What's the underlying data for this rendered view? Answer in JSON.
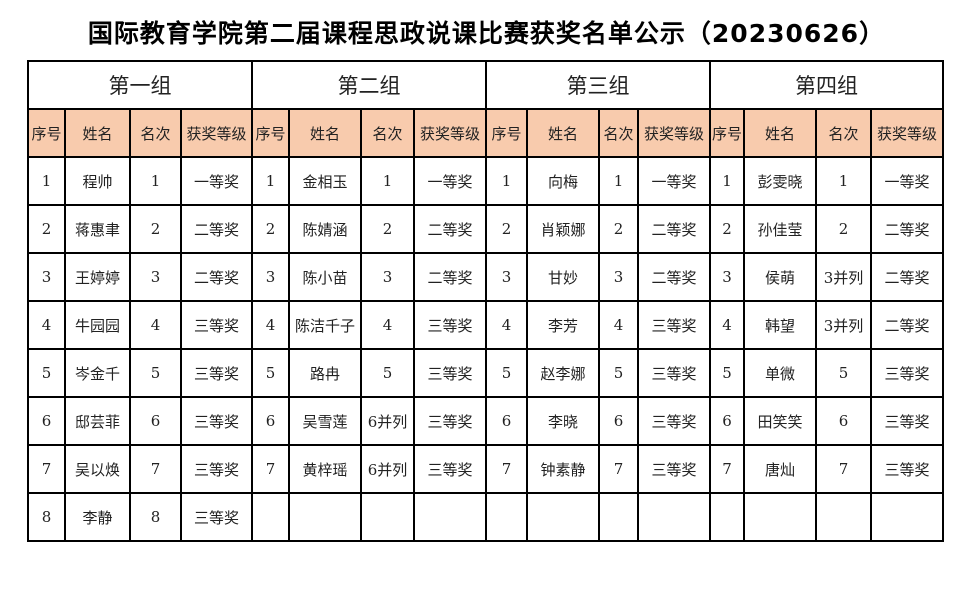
{
  "title": "国际教育学院第二届课程思政说课比赛获奖名单公示（20230626）",
  "header_fill": "#f8cbad",
  "columns": [
    "序号",
    "姓名",
    "名次",
    "获奖等级"
  ],
  "groups": [
    {
      "name": "第一组",
      "rows": [
        [
          "1",
          "程帅",
          "1",
          "一等奖"
        ],
        [
          "2",
          "蒋惠聿",
          "2",
          "二等奖"
        ],
        [
          "3",
          "王婷婷",
          "3",
          "二等奖"
        ],
        [
          "4",
          "牛园园",
          "4",
          "三等奖"
        ],
        [
          "5",
          "岑金千",
          "5",
          "三等奖"
        ],
        [
          "6",
          "邸芸菲",
          "6",
          "三等奖"
        ],
        [
          "7",
          "吴以焕",
          "7",
          "三等奖"
        ],
        [
          "8",
          "李静",
          "8",
          "三等奖"
        ]
      ]
    },
    {
      "name": "第二组",
      "rows": [
        [
          "1",
          "金相玉",
          "1",
          "一等奖"
        ],
        [
          "2",
          "陈婧涵",
          "2",
          "二等奖"
        ],
        [
          "3",
          "陈小苗",
          "3",
          "二等奖"
        ],
        [
          "4",
          "陈洁千子",
          "4",
          "三等奖"
        ],
        [
          "5",
          "路冉",
          "5",
          "三等奖"
        ],
        [
          "6",
          "吴雪莲",
          "6并列",
          "三等奖"
        ],
        [
          "7",
          "黄梓瑶",
          "6并列",
          "三等奖"
        ]
      ]
    },
    {
      "name": "第三组",
      "rows": [
        [
          "1",
          "向梅",
          "1",
          "一等奖"
        ],
        [
          "2",
          "肖颖娜",
          "2",
          "二等奖"
        ],
        [
          "3",
          "甘妙",
          "3",
          "二等奖"
        ],
        [
          "4",
          "李芳",
          "4",
          "三等奖"
        ],
        [
          "5",
          "赵李娜",
          "5",
          "三等奖"
        ],
        [
          "6",
          "李晓",
          "6",
          "三等奖"
        ],
        [
          "7",
          "钟素静",
          "7",
          "三等奖"
        ]
      ]
    },
    {
      "name": "第四组",
      "rows": [
        [
          "1",
          "彭雯晓",
          "1",
          "一等奖"
        ],
        [
          "2",
          "孙佳莹",
          "2",
          "二等奖"
        ],
        [
          "3",
          "侯萌",
          "3并列",
          "二等奖"
        ],
        [
          "4",
          "韩望",
          "3并列",
          "二等奖"
        ],
        [
          "5",
          "单微",
          "5",
          "三等奖"
        ],
        [
          "6",
          "田笑笑",
          "6",
          "三等奖"
        ],
        [
          "7",
          "唐灿",
          "7",
          "三等奖"
        ]
      ]
    }
  ]
}
